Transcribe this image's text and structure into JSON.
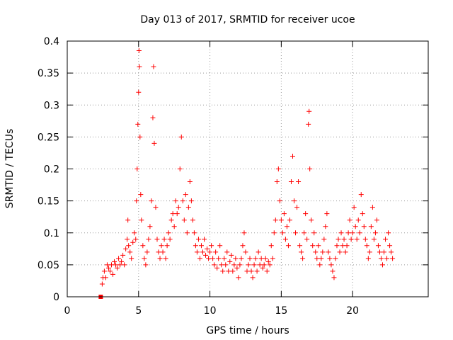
{
  "chart_data": {
    "type": "scatter",
    "title": "Day 013 of 2017, SRMTID for receiver ucoe",
    "xlabel": "GPS time / hours",
    "ylabel": "SRMTID / TECUs",
    "xlim": [
      0,
      25.3
    ],
    "ylim": [
      0,
      0.4
    ],
    "xticks": [
      0,
      5,
      10,
      15,
      20
    ],
    "xtick_labels": [
      "0",
      "5",
      "10",
      "15",
      "20"
    ],
    "yticks": [
      0,
      0.05,
      0.1,
      0.15,
      0.2,
      0.25,
      0.3,
      0.35,
      0.4
    ],
    "ytick_labels": [
      "0",
      "0.05",
      "0.1",
      "0.15",
      "0.2",
      "0.25",
      "0.3",
      "0.35",
      "0.4"
    ],
    "grid": true,
    "marker": "+",
    "color": "#ff0000",
    "series": [
      {
        "name": "SRMTID",
        "points": [
          [
            2.35,
            0.0
          ],
          [
            2.45,
            0.02
          ],
          [
            2.5,
            0.03
          ],
          [
            2.6,
            0.04
          ],
          [
            2.7,
            0.03
          ],
          [
            2.8,
            0.05
          ],
          [
            2.9,
            0.045
          ],
          [
            3.0,
            0.04
          ],
          [
            3.1,
            0.05
          ],
          [
            3.2,
            0.035
          ],
          [
            3.3,
            0.055
          ],
          [
            3.4,
            0.05
          ],
          [
            3.5,
            0.045
          ],
          [
            3.6,
            0.06
          ],
          [
            3.7,
            0.05
          ],
          [
            3.8,
            0.055
          ],
          [
            3.9,
            0.065
          ],
          [
            4.0,
            0.05
          ],
          [
            4.1,
            0.075
          ],
          [
            4.2,
            0.09
          ],
          [
            4.25,
            0.12
          ],
          [
            4.3,
            0.08
          ],
          [
            4.4,
            0.07
          ],
          [
            4.5,
            0.06
          ],
          [
            4.6,
            0.085
          ],
          [
            4.7,
            0.1
          ],
          [
            4.8,
            0.09
          ],
          [
            4.85,
            0.15
          ],
          [
            4.9,
            0.2
          ],
          [
            4.95,
            0.27
          ],
          [
            5.0,
            0.32
          ],
          [
            5.03,
            0.385
          ],
          [
            5.06,
            0.36
          ],
          [
            5.1,
            0.25
          ],
          [
            5.15,
            0.16
          ],
          [
            5.2,
            0.12
          ],
          [
            5.3,
            0.08
          ],
          [
            5.4,
            0.06
          ],
          [
            5.5,
            0.05
          ],
          [
            5.6,
            0.07
          ],
          [
            5.7,
            0.09
          ],
          [
            5.8,
            0.11
          ],
          [
            5.9,
            0.15
          ],
          [
            6.0,
            0.28
          ],
          [
            6.05,
            0.36
          ],
          [
            6.1,
            0.24
          ],
          [
            6.2,
            0.14
          ],
          [
            6.3,
            0.09
          ],
          [
            6.4,
            0.07
          ],
          [
            6.5,
            0.06
          ],
          [
            6.6,
            0.08
          ],
          [
            6.7,
            0.07
          ],
          [
            6.8,
            0.09
          ],
          [
            6.9,
            0.06
          ],
          [
            7.0,
            0.08
          ],
          [
            7.1,
            0.1
          ],
          [
            7.2,
            0.09
          ],
          [
            7.3,
            0.12
          ],
          [
            7.4,
            0.13
          ],
          [
            7.5,
            0.11
          ],
          [
            7.6,
            0.15
          ],
          [
            7.7,
            0.13
          ],
          [
            7.8,
            0.14
          ],
          [
            7.9,
            0.2
          ],
          [
            8.0,
            0.25
          ],
          [
            8.1,
            0.15
          ],
          [
            8.2,
            0.12
          ],
          [
            8.3,
            0.16
          ],
          [
            8.4,
            0.1
          ],
          [
            8.5,
            0.14
          ],
          [
            8.6,
            0.18
          ],
          [
            8.7,
            0.15
          ],
          [
            8.8,
            0.12
          ],
          [
            8.9,
            0.1
          ],
          [
            9.0,
            0.08
          ],
          [
            9.1,
            0.07
          ],
          [
            9.2,
            0.09
          ],
          [
            9.3,
            0.06
          ],
          [
            9.4,
            0.08
          ],
          [
            9.5,
            0.07
          ],
          [
            9.6,
            0.09
          ],
          [
            9.7,
            0.065
          ],
          [
            9.8,
            0.075
          ],
          [
            9.9,
            0.06
          ],
          [
            10.0,
            0.07
          ],
          [
            10.1,
            0.08
          ],
          [
            10.2,
            0.06
          ],
          [
            10.3,
            0.05
          ],
          [
            10.4,
            0.07
          ],
          [
            10.5,
            0.045
          ],
          [
            10.6,
            0.06
          ],
          [
            10.7,
            0.08
          ],
          [
            10.8,
            0.05
          ],
          [
            10.9,
            0.04
          ],
          [
            11.0,
            0.06
          ],
          [
            11.1,
            0.05
          ],
          [
            11.2,
            0.07
          ],
          [
            11.3,
            0.04
          ],
          [
            11.4,
            0.055
          ],
          [
            11.5,
            0.065
          ],
          [
            11.6,
            0.04
          ],
          [
            11.7,
            0.05
          ],
          [
            11.8,
            0.06
          ],
          [
            11.9,
            0.045
          ],
          [
            12.0,
            0.03
          ],
          [
            12.1,
            0.05
          ],
          [
            12.2,
            0.06
          ],
          [
            12.3,
            0.08
          ],
          [
            12.4,
            0.1
          ],
          [
            12.5,
            0.07
          ],
          [
            12.6,
            0.04
          ],
          [
            12.7,
            0.05
          ],
          [
            12.8,
            0.06
          ],
          [
            12.9,
            0.04
          ],
          [
            13.0,
            0.03
          ],
          [
            13.1,
            0.05
          ],
          [
            13.2,
            0.06
          ],
          [
            13.3,
            0.04
          ],
          [
            13.4,
            0.07
          ],
          [
            13.5,
            0.05
          ],
          [
            13.6,
            0.06
          ],
          [
            13.7,
            0.045
          ],
          [
            13.8,
            0.05
          ],
          [
            13.9,
            0.06
          ],
          [
            14.0,
            0.04
          ],
          [
            14.1,
            0.055
          ],
          [
            14.2,
            0.05
          ],
          [
            14.3,
            0.08
          ],
          [
            14.4,
            0.06
          ],
          [
            14.5,
            0.1
          ],
          [
            14.6,
            0.12
          ],
          [
            14.7,
            0.18
          ],
          [
            14.8,
            0.2
          ],
          [
            14.9,
            0.15
          ],
          [
            15.0,
            0.12
          ],
          [
            15.1,
            0.1
          ],
          [
            15.2,
            0.13
          ],
          [
            15.3,
            0.09
          ],
          [
            15.4,
            0.11
          ],
          [
            15.5,
            0.08
          ],
          [
            15.6,
            0.12
          ],
          [
            15.7,
            0.18
          ],
          [
            15.8,
            0.22
          ],
          [
            15.9,
            0.15
          ],
          [
            16.0,
            0.1
          ],
          [
            16.1,
            0.14
          ],
          [
            16.2,
            0.18
          ],
          [
            16.3,
            0.08
          ],
          [
            16.4,
            0.07
          ],
          [
            16.5,
            0.06
          ],
          [
            16.6,
            0.1
          ],
          [
            16.7,
            0.13
          ],
          [
            16.8,
            0.09
          ],
          [
            16.9,
            0.27
          ],
          [
            16.95,
            0.29
          ],
          [
            17.0,
            0.2
          ],
          [
            17.1,
            0.12
          ],
          [
            17.2,
            0.08
          ],
          [
            17.3,
            0.1
          ],
          [
            17.4,
            0.07
          ],
          [
            17.5,
            0.06
          ],
          [
            17.6,
            0.08
          ],
          [
            17.7,
            0.05
          ],
          [
            17.8,
            0.06
          ],
          [
            17.9,
            0.07
          ],
          [
            18.0,
            0.09
          ],
          [
            18.1,
            0.11
          ],
          [
            18.2,
            0.13
          ],
          [
            18.3,
            0.07
          ],
          [
            18.4,
            0.06
          ],
          [
            18.5,
            0.05
          ],
          [
            18.6,
            0.04
          ],
          [
            18.7,
            0.03
          ],
          [
            18.8,
            0.06
          ],
          [
            18.9,
            0.08
          ],
          [
            19.0,
            0.09
          ],
          [
            19.1,
            0.07
          ],
          [
            19.2,
            0.1
          ],
          [
            19.3,
            0.08
          ],
          [
            19.4,
            0.09
          ],
          [
            19.5,
            0.07
          ],
          [
            19.6,
            0.08
          ],
          [
            19.7,
            0.1
          ],
          [
            19.8,
            0.12
          ],
          [
            19.9,
            0.09
          ],
          [
            20.0,
            0.1
          ],
          [
            20.1,
            0.14
          ],
          [
            20.2,
            0.11
          ],
          [
            20.3,
            0.09
          ],
          [
            20.4,
            0.12
          ],
          [
            20.5,
            0.1
          ],
          [
            20.6,
            0.16
          ],
          [
            20.7,
            0.13
          ],
          [
            20.8,
            0.11
          ],
          [
            20.9,
            0.09
          ],
          [
            21.0,
            0.08
          ],
          [
            21.1,
            0.06
          ],
          [
            21.2,
            0.07
          ],
          [
            21.3,
            0.11
          ],
          [
            21.4,
            0.14
          ],
          [
            21.5,
            0.09
          ],
          [
            21.6,
            0.1
          ],
          [
            21.7,
            0.12
          ],
          [
            21.8,
            0.08
          ],
          [
            21.9,
            0.07
          ],
          [
            22.0,
            0.06
          ],
          [
            22.1,
            0.05
          ],
          [
            22.2,
            0.07
          ],
          [
            22.3,
            0.09
          ],
          [
            22.4,
            0.06
          ],
          [
            22.5,
            0.1
          ],
          [
            22.6,
            0.08
          ],
          [
            22.7,
            0.07
          ],
          [
            22.8,
            0.06
          ]
        ]
      }
    ]
  }
}
